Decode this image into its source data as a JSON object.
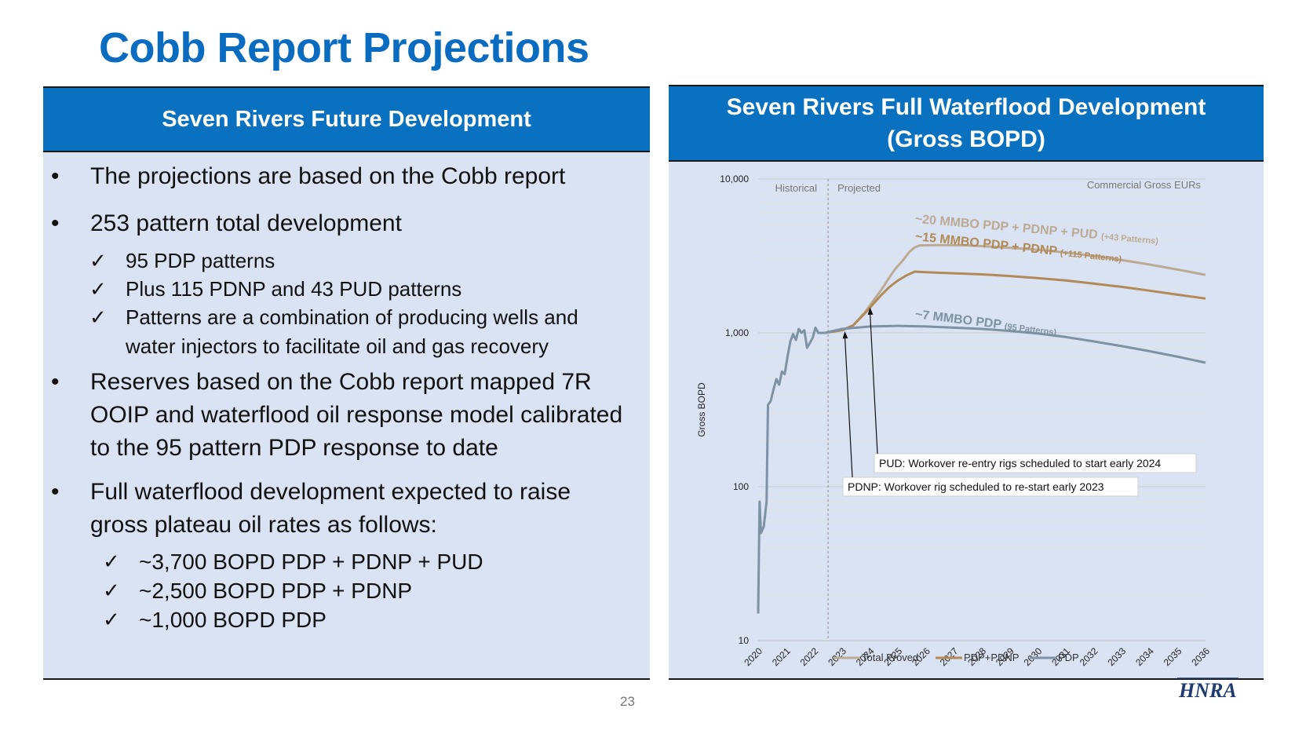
{
  "slide": {
    "title": "Cobb Report Projections",
    "page_number": "23",
    "logo_text": "HNRA"
  },
  "left_panel": {
    "header": "Seven Rivers Future Development",
    "bullets": [
      "The projections are based on the Cobb report",
      "253 pattern total development",
      "Reserves based on the Cobb report mapped 7R OOIP and waterflood oil response model calibrated to the 95 pattern PDP response to date",
      "Full waterflood development expected to raise gross plateau oil rates as follows:"
    ],
    "patterns_checklist": [
      "95 PDP patterns",
      "Plus 115 PDNP and 43 PUD patterns",
      "Patterns are a combination of producing wells and water injectors to facilitate oil and gas recovery"
    ],
    "rates_checklist": [
      "~3,700 BOPD PDP + PDNP + PUD",
      "~2,500 BOPD PDP + PDNP",
      "~1,000 BOPD PDP"
    ]
  },
  "right_panel": {
    "header_line1": "Seven Rivers Full Waterflood Development",
    "header_line2": "(Gross BOPD)"
  },
  "chart_data": {
    "type": "line",
    "title": "",
    "xlabel": "",
    "ylabel": "Gross BOPD",
    "y_scale": "log",
    "ylim": [
      10,
      10000
    ],
    "yticks": [
      10,
      100,
      1000,
      10000
    ],
    "ytick_labels": [
      "10",
      "100",
      "1,000",
      "10,000"
    ],
    "xlim": [
      2020,
      2036
    ],
    "xtick_labels": [
      "2020",
      "2021",
      "2022",
      "2023",
      "2024",
      "2025",
      "2026",
      "2027",
      "2028",
      "2029",
      "2030",
      "2031",
      "2032",
      "2033",
      "2034",
      "2035",
      "2036"
    ],
    "grid": true,
    "legend_position": "bottom",
    "series": [
      {
        "name": "Total Proved",
        "color": "#bbaa94",
        "points": [
          [
            2022.4,
            1000
          ],
          [
            2023.0,
            1040
          ],
          [
            2023.4,
            1120
          ],
          [
            2023.8,
            1350
          ],
          [
            2024.1,
            1600
          ],
          [
            2024.4,
            1900
          ],
          [
            2024.7,
            2300
          ],
          [
            2024.9,
            2600
          ],
          [
            2025.2,
            3000
          ],
          [
            2025.4,
            3350
          ],
          [
            2025.6,
            3600
          ],
          [
            2025.8,
            3700
          ],
          [
            2026.5,
            3720
          ],
          [
            2027.5,
            3700
          ],
          [
            2028.5,
            3620
          ],
          [
            2029.5,
            3520
          ],
          [
            2030.5,
            3400
          ],
          [
            2031.5,
            3250
          ],
          [
            2032.5,
            3070
          ],
          [
            2033.5,
            2880
          ],
          [
            2034.5,
            2680
          ],
          [
            2035.5,
            2480
          ],
          [
            2036.0,
            2380
          ]
        ]
      },
      {
        "name": "PDP+PDNP",
        "color": "#b08a58",
        "points": [
          [
            2022.4,
            1000
          ],
          [
            2023.0,
            1040
          ],
          [
            2023.4,
            1120
          ],
          [
            2023.8,
            1330
          ],
          [
            2024.1,
            1530
          ],
          [
            2024.4,
            1760
          ],
          [
            2024.7,
            1990
          ],
          [
            2025.0,
            2190
          ],
          [
            2025.3,
            2360
          ],
          [
            2025.6,
            2500
          ],
          [
            2026.0,
            2480
          ],
          [
            2027.0,
            2440
          ],
          [
            2028.0,
            2400
          ],
          [
            2029.0,
            2340
          ],
          [
            2030.0,
            2270
          ],
          [
            2031.0,
            2190
          ],
          [
            2032.0,
            2090
          ],
          [
            2033.0,
            1990
          ],
          [
            2034.0,
            1880
          ],
          [
            2035.0,
            1770
          ],
          [
            2036.0,
            1670
          ]
        ]
      },
      {
        "name": "PDP",
        "color": "#7d92a3",
        "points": [
          [
            2020.0,
            15
          ],
          [
            2020.05,
            80
          ],
          [
            2020.1,
            50
          ],
          [
            2020.2,
            55
          ],
          [
            2020.3,
            80
          ],
          [
            2020.35,
            340
          ],
          [
            2020.45,
            360
          ],
          [
            2020.55,
            430
          ],
          [
            2020.65,
            500
          ],
          [
            2020.75,
            460
          ],
          [
            2020.85,
            560
          ],
          [
            2020.95,
            540
          ],
          [
            2021.05,
            700
          ],
          [
            2021.15,
            880
          ],
          [
            2021.25,
            980
          ],
          [
            2021.35,
            900
          ],
          [
            2021.45,
            1060
          ],
          [
            2021.55,
            1000
          ],
          [
            2021.65,
            1040
          ],
          [
            2021.75,
            800
          ],
          [
            2021.85,
            860
          ],
          [
            2021.95,
            930
          ],
          [
            2022.05,
            1080
          ],
          [
            2022.15,
            1000
          ],
          [
            2022.4,
            1000
          ],
          [
            2023.0,
            1060
          ],
          [
            2024.0,
            1100
          ],
          [
            2025.0,
            1110
          ],
          [
            2026.0,
            1100
          ],
          [
            2027.0,
            1080
          ],
          [
            2028.0,
            1060
          ],
          [
            2029.0,
            1030
          ],
          [
            2030.0,
            990
          ],
          [
            2031.0,
            940
          ],
          [
            2032.0,
            880
          ],
          [
            2033.0,
            820
          ],
          [
            2034.0,
            760
          ],
          [
            2035.0,
            700
          ],
          [
            2036.0,
            640
          ]
        ]
      }
    ],
    "region_labels": [
      "Historical",
      "Projected",
      "Commercial Gross EURs"
    ],
    "divider_x": 2022.5,
    "series_annotations": [
      {
        "text": "~20 MMBO PDP + PDNP + PUD",
        "suffix": "(+43 Patterns)",
        "series": "Total Proved"
      },
      {
        "text": "~15 MMBO PDP + PDNP",
        "suffix": "(+115 Patterns)",
        "series": "PDP+PDNP"
      },
      {
        "text": "~7 MMBO PDP",
        "suffix": "(95 Patterns)",
        "series": "PDP"
      }
    ],
    "callouts": [
      {
        "text": "PUD: Workover re-entry rigs scheduled to start early 2024",
        "x": 2024.0,
        "y": 1500
      },
      {
        "text": "PDNP: Workover rig scheduled to re-start early 2023",
        "x": 2023.1,
        "y": 1050
      }
    ]
  }
}
